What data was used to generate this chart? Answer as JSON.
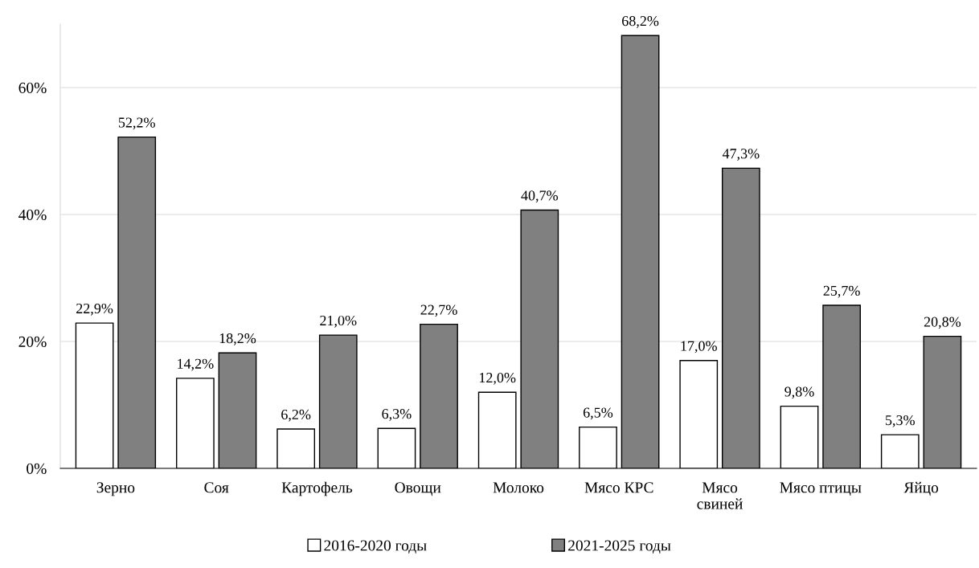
{
  "chart_data": {
    "type": "bar",
    "categories": [
      "Зерно",
      "Соя",
      "Картофель",
      "Овощи",
      "Молоко",
      "Мясо КРС",
      "Мясо\nсвиней",
      "Мясо птицы",
      "Яйцо"
    ],
    "series": [
      {
        "name": "2016-2020 годы",
        "color": "#ffffff",
        "values": [
          22.9,
          14.2,
          6.2,
          6.3,
          12.0,
          6.5,
          17.0,
          9.8,
          5.3
        ],
        "value_labels": [
          "22,9%",
          "14,2%",
          "6,2%",
          "6,3%",
          "12,0%",
          "6,5%",
          "17,0%",
          "9,8%",
          "5,3%"
        ]
      },
      {
        "name": "2021-2025 годы",
        "color": "#808080",
        "values": [
          52.2,
          18.2,
          21.0,
          22.7,
          40.7,
          68.2,
          47.3,
          25.7,
          20.8
        ],
        "value_labels": [
          "52,2%",
          "18,2%",
          "21,0%",
          "22,7%",
          "40,7%",
          "68,2%",
          "47,3%",
          "25,7%",
          "20,8%"
        ]
      }
    ],
    "ylim": [
      0,
      70
    ],
    "yticks": [
      {
        "value": 0,
        "label": "0%"
      },
      {
        "value": 20,
        "label": "20%"
      },
      {
        "value": 40,
        "label": "40%"
      },
      {
        "value": 60,
        "label": "60%"
      }
    ],
    "grid": "y",
    "legend": "bottom"
  }
}
